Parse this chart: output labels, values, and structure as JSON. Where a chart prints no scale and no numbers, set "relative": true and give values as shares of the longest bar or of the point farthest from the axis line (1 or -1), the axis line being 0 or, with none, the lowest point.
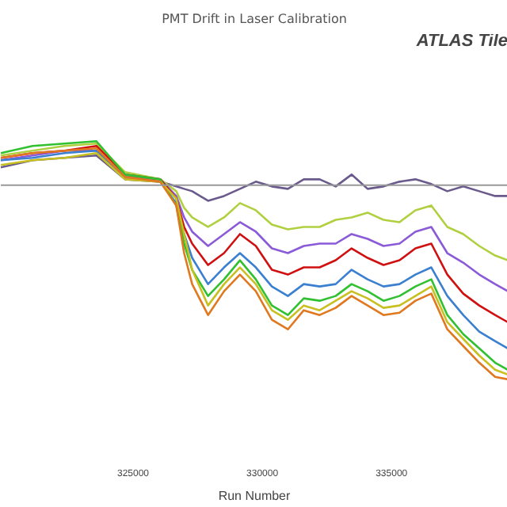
{
  "chart_data": {
    "type": "line",
    "title": "PMT Drift in Laser Calibration",
    "xlabel": "Run Number",
    "relative": true,
    "annotations": [
      "ATLAS Tile"
    ],
    "x": [
      319880,
      321110,
      322345,
      323580,
      324690,
      326050,
      326670,
      326975,
      327285,
      327900,
      328520,
      329135,
      329750,
      330370,
      330990,
      331605,
      332220,
      332840,
      333455,
      334075,
      334690,
      335310,
      335925,
      336540,
      337160,
      337775,
      338395,
      339010,
      339500
    ],
    "xlim": [
      319880,
      339500
    ],
    "xticks": [
      325000,
      330000,
      335000
    ],
    "grid": false,
    "marker": "none",
    "line_style": "solid",
    "ref_lines": [
      {
        "axis": "y",
        "value": 0.815,
        "label": null,
        "color": "#999999"
      }
    ],
    "series": [
      {
        "color": "#6a5a8c",
        "values": [
          0.89,
          0.92,
          0.93,
          0.94,
          0.84,
          0.83,
          0.81,
          0.8,
          0.79,
          0.75,
          0.77,
          0.8,
          0.83,
          0.81,
          0.8,
          0.84,
          0.84,
          0.81,
          0.86,
          0.8,
          0.81,
          0.83,
          0.84,
          0.82,
          0.79,
          0.81,
          0.79,
          0.77,
          0.77
        ]
      },
      {
        "color": "#b0d040",
        "values": [
          0.94,
          0.96,
          0.98,
          0.99,
          0.87,
          0.84,
          0.79,
          0.72,
          0.68,
          0.64,
          0.68,
          0.74,
          0.71,
          0.65,
          0.63,
          0.64,
          0.64,
          0.67,
          0.68,
          0.7,
          0.67,
          0.66,
          0.71,
          0.73,
          0.64,
          0.61,
          0.56,
          0.52,
          0.5
        ]
      },
      {
        "color": "#8a5ad8",
        "values": [
          0.92,
          0.94,
          0.96,
          0.96,
          0.85,
          0.84,
          0.77,
          0.68,
          0.62,
          0.56,
          0.61,
          0.66,
          0.62,
          0.55,
          0.53,
          0.56,
          0.57,
          0.57,
          0.61,
          0.59,
          0.56,
          0.57,
          0.62,
          0.64,
          0.53,
          0.49,
          0.44,
          0.4,
          0.37
        ]
      },
      {
        "color": "#d01010",
        "values": [
          0.93,
          0.95,
          0.96,
          0.98,
          0.86,
          0.84,
          0.76,
          0.64,
          0.57,
          0.48,
          0.53,
          0.61,
          0.56,
          0.46,
          0.44,
          0.47,
          0.47,
          0.5,
          0.55,
          0.51,
          0.48,
          0.5,
          0.55,
          0.57,
          0.44,
          0.36,
          0.31,
          0.27,
          0.24
        ]
      },
      {
        "color": "#3a7fd0",
        "values": [
          0.92,
          0.93,
          0.95,
          0.96,
          0.85,
          0.83,
          0.74,
          0.61,
          0.51,
          0.4,
          0.47,
          0.53,
          0.47,
          0.39,
          0.35,
          0.4,
          0.39,
          0.4,
          0.46,
          0.42,
          0.39,
          0.4,
          0.44,
          0.47,
          0.35,
          0.27,
          0.2,
          0.16,
          0.13
        ]
      },
      {
        "color": "#30c030",
        "values": [
          0.95,
          0.98,
          0.99,
          1.0,
          0.86,
          0.84,
          0.73,
          0.57,
          0.46,
          0.35,
          0.42,
          0.5,
          0.42,
          0.31,
          0.27,
          0.34,
          0.33,
          0.35,
          0.4,
          0.37,
          0.33,
          0.35,
          0.39,
          0.42,
          0.27,
          0.19,
          0.13,
          0.07,
          0.04
        ]
      },
      {
        "color": "#c8c020",
        "values": [
          0.9,
          0.92,
          0.93,
          0.95,
          0.84,
          0.83,
          0.76,
          0.61,
          0.46,
          0.31,
          0.4,
          0.47,
          0.4,
          0.29,
          0.25,
          0.31,
          0.29,
          0.33,
          0.37,
          0.34,
          0.3,
          0.31,
          0.35,
          0.39,
          0.24,
          0.17,
          0.1,
          0.04,
          0.02
        ]
      },
      {
        "color": "#e07820",
        "values": [
          0.93,
          0.95,
          0.96,
          0.97,
          0.85,
          0.83,
          0.73,
          0.53,
          0.4,
          0.27,
          0.37,
          0.44,
          0.37,
          0.25,
          0.21,
          0.29,
          0.27,
          0.3,
          0.35,
          0.31,
          0.27,
          0.28,
          0.33,
          0.36,
          0.21,
          0.14,
          0.07,
          0.01,
          0
        ]
      }
    ]
  }
}
